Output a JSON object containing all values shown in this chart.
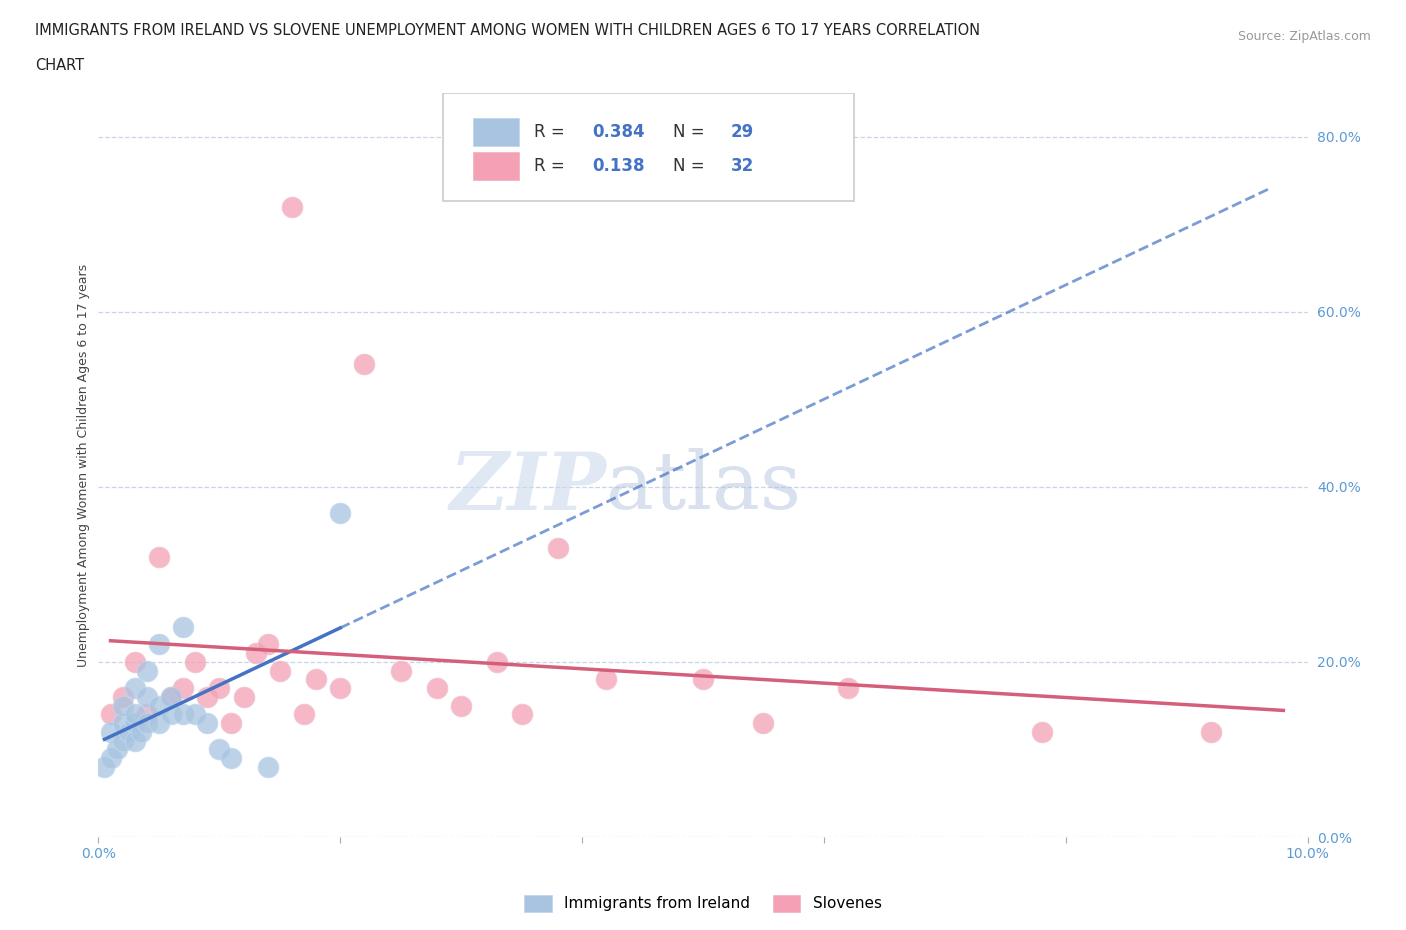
{
  "title_line1": "IMMIGRANTS FROM IRELAND VS SLOVENE UNEMPLOYMENT AMONG WOMEN WITH CHILDREN AGES 6 TO 17 YEARS CORRELATION",
  "title_line2": "CHART",
  "source": "Source: ZipAtlas.com",
  "ylabel": "Unemployment Among Women with Children Ages 6 to 17 years",
  "xlim": [
    0.0,
    0.1
  ],
  "ylim": [
    0.0,
    0.85
  ],
  "yticks": [
    0.0,
    0.2,
    0.4,
    0.6,
    0.8
  ],
  "ytick_labels": [
    "0.0%",
    "20.0%",
    "40.0%",
    "60.0%",
    "80.0%"
  ],
  "xticks": [
    0.0,
    0.02,
    0.04,
    0.06,
    0.08,
    0.1
  ],
  "xtick_labels": [
    "0.0%",
    "",
    "",
    "",
    "",
    "10.0%"
  ],
  "ireland_R": 0.384,
  "ireland_N": 29,
  "slovene_R": 0.138,
  "slovene_N": 32,
  "ireland_color": "#a8c4e0",
  "slovene_color": "#f4a0b5",
  "ireland_line_color": "#4472c4",
  "slovene_line_color": "#d45f7a",
  "background_color": "#ffffff",
  "grid_color": "#c8d4e8",
  "ireland_x": [
    0.0005,
    0.001,
    0.001,
    0.0015,
    0.002,
    0.002,
    0.002,
    0.0025,
    0.003,
    0.003,
    0.003,
    0.003,
    0.0035,
    0.004,
    0.004,
    0.004,
    0.005,
    0.005,
    0.005,
    0.006,
    0.006,
    0.007,
    0.007,
    0.008,
    0.009,
    0.01,
    0.011,
    0.014,
    0.02
  ],
  "ireland_y": [
    0.08,
    0.09,
    0.12,
    0.1,
    0.11,
    0.13,
    0.15,
    0.12,
    0.11,
    0.13,
    0.14,
    0.17,
    0.12,
    0.13,
    0.16,
    0.19,
    0.13,
    0.15,
    0.22,
    0.14,
    0.16,
    0.14,
    0.24,
    0.14,
    0.13,
    0.1,
    0.09,
    0.08,
    0.37
  ],
  "slovene_x": [
    0.001,
    0.002,
    0.003,
    0.004,
    0.005,
    0.006,
    0.007,
    0.008,
    0.009,
    0.01,
    0.011,
    0.012,
    0.013,
    0.014,
    0.015,
    0.016,
    0.017,
    0.018,
    0.02,
    0.022,
    0.025,
    0.028,
    0.03,
    0.033,
    0.035,
    0.038,
    0.042,
    0.05,
    0.055,
    0.062,
    0.078,
    0.092
  ],
  "slovene_y": [
    0.14,
    0.16,
    0.2,
    0.14,
    0.32,
    0.16,
    0.17,
    0.2,
    0.16,
    0.17,
    0.13,
    0.16,
    0.21,
    0.22,
    0.19,
    0.72,
    0.14,
    0.18,
    0.17,
    0.54,
    0.19,
    0.17,
    0.15,
    0.2,
    0.14,
    0.33,
    0.18,
    0.18,
    0.13,
    0.17,
    0.12,
    0.12
  ]
}
